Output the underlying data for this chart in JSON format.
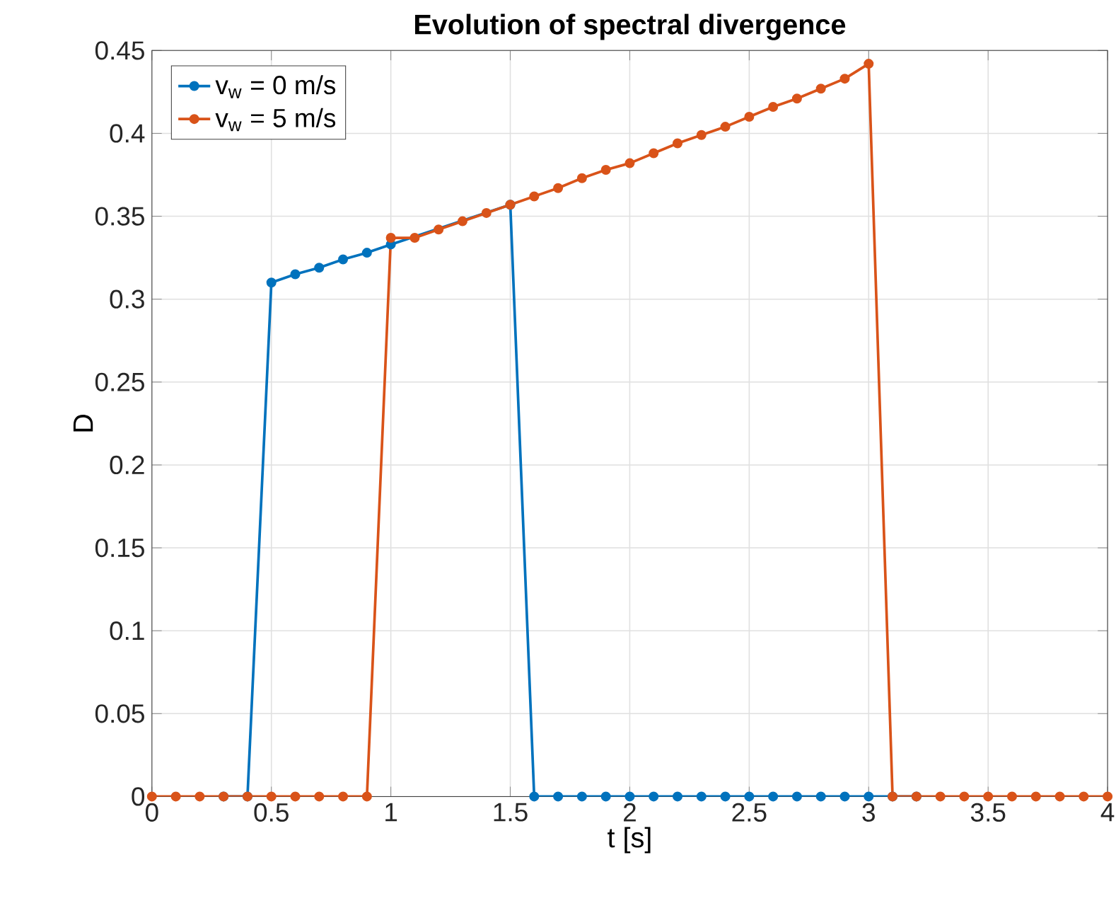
{
  "chart_data": {
    "type": "line",
    "title": "Evolution of spectral divergence",
    "xlabel": "t [s]",
    "ylabel": "D",
    "x": [
      0,
      0.1,
      0.2,
      0.3,
      0.4,
      0.5,
      0.6,
      0.7,
      0.8,
      0.9,
      1.0,
      1.1,
      1.2,
      1.3,
      1.4,
      1.5,
      1.6,
      1.7,
      1.8,
      1.9,
      2.0,
      2.1,
      2.2,
      2.3,
      2.4,
      2.5,
      2.6,
      2.7,
      2.8,
      2.9,
      3.0,
      3.1,
      3.2,
      3.3,
      3.4,
      3.5,
      3.6,
      3.7,
      3.8,
      3.9,
      4.0
    ],
    "series": [
      {
        "name": "v$_{w}$ = 0 m/s",
        "color": "#0072bd",
        "values": [
          null,
          null,
          null,
          0,
          0,
          0.31,
          0.315,
          0.319,
          0.324,
          0.328,
          0.333,
          null,
          null,
          null,
          null,
          0.357,
          0,
          0,
          0,
          0,
          0,
          0,
          0,
          0,
          0,
          0,
          0,
          0,
          0,
          0,
          0,
          0,
          0,
          null,
          null,
          null,
          null,
          null,
          null,
          null,
          null
        ]
      },
      {
        "name": "v$_{w}$ = 5 m/s",
        "color": "#d95319",
        "values": [
          0,
          0,
          0,
          0,
          0,
          0,
          0,
          0,
          0,
          0,
          0.337,
          0.337,
          0.342,
          0.347,
          0.352,
          0.357,
          0.362,
          0.367,
          0.373,
          0.378,
          0.382,
          0.388,
          0.394,
          0.399,
          0.404,
          0.41,
          0.416,
          0.421,
          0.427,
          0.433,
          0.442,
          0,
          0,
          0,
          0,
          0,
          0,
          0,
          0,
          0,
          0
        ]
      }
    ],
    "xlim": [
      0,
      4
    ],
    "xticks": [
      0,
      0.5,
      1,
      1.5,
      2,
      2.5,
      3,
      3.5,
      4
    ],
    "ylim": [
      0,
      0.45
    ],
    "yticks": [
      0,
      0.05,
      0.1,
      0.15,
      0.2,
      0.25,
      0.3,
      0.35,
      0.4,
      0.45
    ],
    "grid": true,
    "legend": "top left",
    "marker": "circle",
    "line_style": "solid"
  }
}
